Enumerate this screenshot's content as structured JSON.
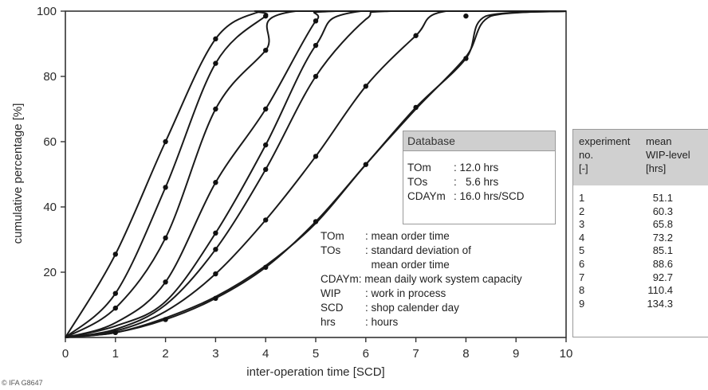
{
  "chart_data": {
    "type": "line",
    "xlabel": "inter-operation time [SCD]",
    "ylabel": "cumulative percentage [%]",
    "xlim": [
      0,
      10
    ],
    "ylim": [
      0,
      100
    ],
    "xticks": [
      0,
      1,
      2,
      3,
      4,
      5,
      6,
      7,
      8,
      9,
      10
    ],
    "yticks": [
      20,
      40,
      60,
      80,
      100
    ],
    "grid": false,
    "series": [
      {
        "x": [
          0,
          1,
          2,
          3,
          3.9,
          4.3,
          10
        ],
        "y": [
          0,
          25.5,
          60,
          91.5,
          100,
          100,
          100
        ],
        "markers": [
          [
            1,
            25.5
          ],
          [
            2,
            60
          ],
          [
            3,
            91.5
          ]
        ]
      },
      {
        "x": [
          0,
          1,
          2,
          3,
          4,
          4.3,
          10
        ],
        "y": [
          0,
          13.5,
          46,
          84,
          98.5,
          100,
          100
        ],
        "markers": [
          [
            1,
            13.5
          ],
          [
            2,
            46
          ],
          [
            3,
            84
          ],
          [
            4,
            98.5
          ]
        ]
      },
      {
        "x": [
          0,
          1,
          2,
          3,
          4,
          4.6,
          10
        ],
        "y": [
          0,
          9,
          30.5,
          70,
          88,
          100,
          100
        ],
        "markers": [
          [
            1,
            9
          ],
          [
            2,
            30.5
          ],
          [
            3,
            70
          ],
          [
            4,
            88
          ]
        ]
      },
      {
        "x": [
          0,
          1,
          2,
          3,
          4,
          5,
          5.4,
          10
        ],
        "y": [
          0,
          4.5,
          17,
          47.5,
          70,
          97,
          100,
          100
        ],
        "markers": [
          [
            2,
            17
          ],
          [
            3,
            47.5
          ],
          [
            4,
            70
          ],
          [
            5,
            97
          ]
        ]
      },
      {
        "x": [
          0,
          1,
          2,
          3,
          4,
          5,
          5.9,
          10
        ],
        "y": [
          0,
          3.5,
          11,
          32,
          59,
          89.5,
          100,
          100
        ],
        "markers": [
          [
            3,
            32
          ],
          [
            4,
            59
          ],
          [
            5,
            89.5
          ]
        ]
      },
      {
        "x": [
          0,
          1,
          2,
          3,
          4,
          5,
          6,
          6.5,
          10
        ],
        "y": [
          0,
          2.5,
          10,
          27,
          51.5,
          80,
          97.5,
          100,
          100
        ],
        "markers": [
          [
            3,
            27
          ],
          [
            4,
            51.5
          ],
          [
            5,
            80
          ]
        ]
      },
      {
        "x": [
          0,
          1,
          2,
          3,
          4,
          5,
          6,
          7,
          7.6,
          10
        ],
        "y": [
          0,
          2,
          8,
          19.5,
          36,
          55.5,
          77,
          92.5,
          100,
          100
        ],
        "markers": [
          [
            3,
            19.5
          ],
          [
            4,
            36
          ],
          [
            5,
            55.5
          ],
          [
            6,
            77
          ],
          [
            7,
            92.5
          ]
        ]
      },
      {
        "x": [
          0,
          1,
          2,
          3,
          4,
          5,
          6,
          7,
          8,
          8.4,
          10
        ],
        "y": [
          0,
          1.5,
          5.5,
          12,
          21.5,
          35.5,
          53,
          70.5,
          85.5,
          98.5,
          100
        ],
        "markers": [
          [
            2,
            5.5
          ],
          [
            3,
            12
          ],
          [
            4,
            21.5
          ],
          [
            5,
            35.5
          ],
          [
            6,
            53
          ],
          [
            7,
            70.5
          ],
          [
            8,
            85.5
          ]
        ]
      },
      {
        "x": [
          0,
          1,
          2,
          3,
          4,
          5,
          6,
          7,
          8,
          8.5,
          10
        ],
        "y": [
          0,
          1.5,
          6,
          12.5,
          22,
          35,
          53,
          70,
          86,
          98.5,
          100
        ],
        "markers": [
          [
            1,
            1.5
          ],
          [
            8,
            98.5
          ]
        ]
      }
    ]
  },
  "database_box": {
    "title": "Database",
    "rows": [
      {
        "key": "TOm",
        "value": ": 12.0 hrs"
      },
      {
        "key": "TOs",
        "value": ":   5.6 hrs"
      },
      {
        "key": "CDAYm",
        "value": ": 16.0 hrs/SCD"
      }
    ]
  },
  "legend_text": [
    {
      "key": "TOm",
      "value": ": mean order time"
    },
    {
      "key": "TOs",
      "value": ": standard deviation of"
    },
    {
      "key": "",
      "value": "  mean order time"
    },
    {
      "key": "CDAYm:",
      "value": "mean daily work system capacity"
    },
    {
      "key": "WIP",
      "value": ": work in process"
    },
    {
      "key": "SCD",
      "value": ": shop calender day"
    },
    {
      "key": "hrs",
      "value": ": hours"
    }
  ],
  "table": {
    "header_col1": [
      "experiment",
      "no.",
      "[-]"
    ],
    "header_col2": [
      "mean",
      "WIP-level",
      "[hrs]"
    ],
    "rows": [
      {
        "no": "1",
        "wip": "51.1"
      },
      {
        "no": "2",
        "wip": "60.3"
      },
      {
        "no": "3",
        "wip": "65.8"
      },
      {
        "no": "4",
        "wip": "73.2"
      },
      {
        "no": "5",
        "wip": "85.1"
      },
      {
        "no": "6",
        "wip": "88.6"
      },
      {
        "no": "7",
        "wip": "92.7"
      },
      {
        "no": "8",
        "wip": "110.4"
      },
      {
        "no": "9",
        "wip": "134.3"
      }
    ]
  },
  "copyright": "© IFA  G8647"
}
